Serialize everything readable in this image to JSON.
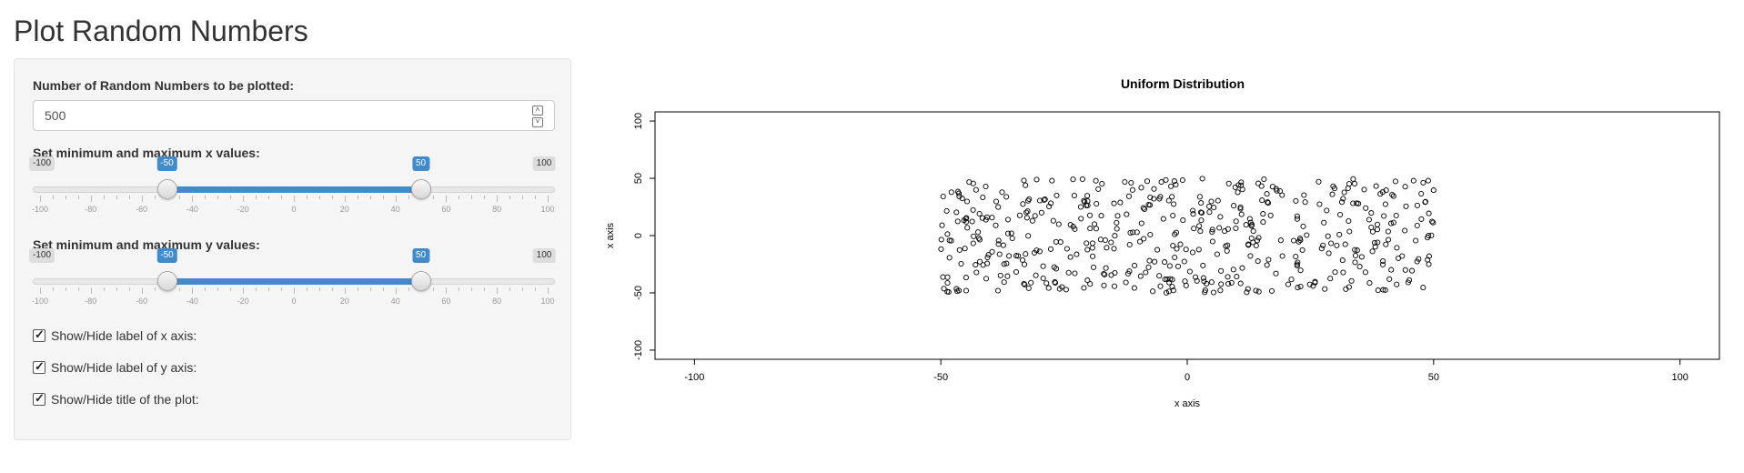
{
  "page": {
    "title": "Plot Random Numbers"
  },
  "controls": {
    "num_label": "Number of Random Numbers to be plotted:",
    "num_value": "500",
    "x_label": "Set minimum and maximum x values:",
    "y_label": "Set minimum and maximum y values:",
    "slider_x": {
      "min": -100,
      "max": 100,
      "low": -50,
      "high": 50,
      "tick_labels": [
        "-100",
        "-80",
        "-60",
        "-40",
        "-20",
        "0",
        "20",
        "40",
        "60",
        "80",
        "100"
      ]
    },
    "slider_y": {
      "min": -100,
      "max": 100,
      "low": -50,
      "high": 50,
      "tick_labels": [
        "-100",
        "-80",
        "-60",
        "-40",
        "-20",
        "0",
        "20",
        "40",
        "60",
        "80",
        "100"
      ]
    },
    "checkboxes": [
      {
        "label": "Show/Hide label of x axis:",
        "checked": true
      },
      {
        "label": "Show/Hide label of y axis:",
        "checked": true
      },
      {
        "label": "Show/Hide title of the plot:",
        "checked": true
      }
    ]
  },
  "chart_data": {
    "type": "scatter",
    "title": "Uniform Distribution",
    "xlabel": "x axis",
    "ylabel": "x axis",
    "xlim": [
      -108,
      108
    ],
    "ylim": [
      -108,
      108
    ],
    "xticks": [
      -100,
      -50,
      0,
      50,
      100
    ],
    "yticks": [
      -100,
      -50,
      0,
      50,
      100
    ],
    "points": {
      "distribution": "uniform",
      "count": 500,
      "x_range": [
        -50,
        50
      ],
      "y_range": [
        -50,
        50
      ],
      "marker": "open-circle"
    },
    "colors": {
      "points": "#000000",
      "accent": "#428bca"
    }
  }
}
